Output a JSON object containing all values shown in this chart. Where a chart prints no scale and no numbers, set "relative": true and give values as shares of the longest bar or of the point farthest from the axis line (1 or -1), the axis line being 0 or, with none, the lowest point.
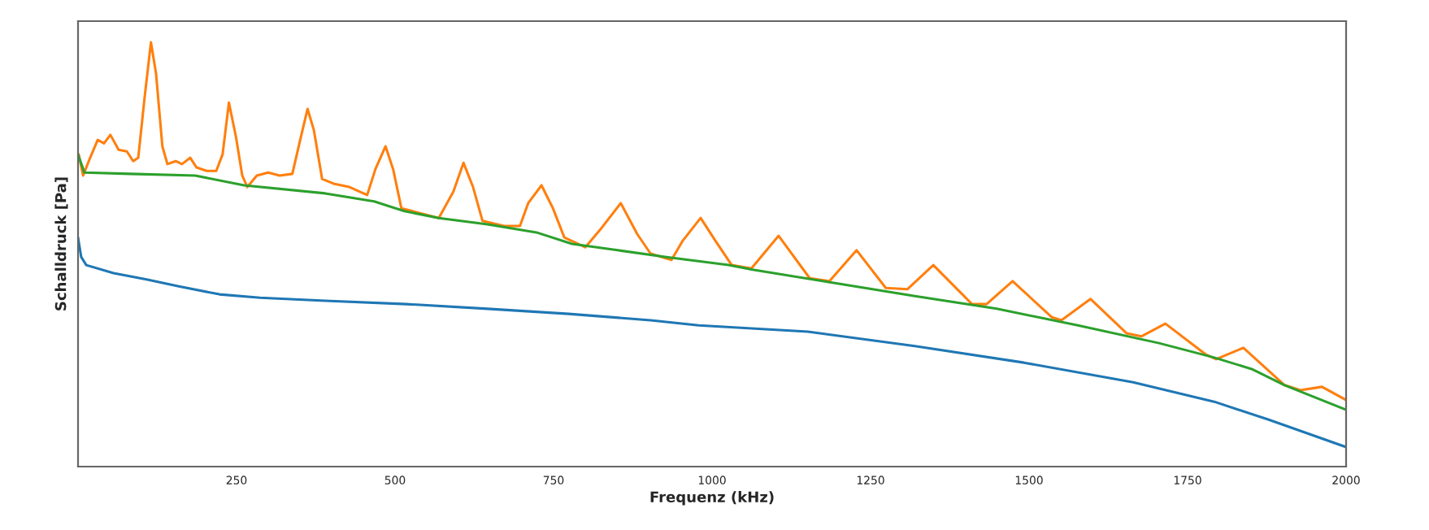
{
  "chart_data": {
    "type": "line",
    "relative": true,
    "xlabel": "Frequenz (kHz)",
    "ylabel": "Schalldruck [Pa]",
    "xlim": [
      0,
      2000
    ],
    "xticks": [
      250,
      500,
      750,
      1000,
      1250,
      1500,
      1750,
      2000
    ],
    "grid": false,
    "legend": false,
    "series": [
      {
        "color": "#1f77b4",
        "x": [
          0,
          5,
          13,
          56,
          108,
          159,
          223,
          287,
          390,
          518,
          646,
          774,
          903,
          979,
          1151,
          1320,
          1492,
          1664,
          1792,
          1877,
          2000
        ],
        "values": [
          0.54,
          0.494,
          0.475,
          0.456,
          0.441,
          0.425,
          0.406,
          0.398,
          0.391,
          0.383,
          0.372,
          0.36,
          0.345,
          0.333,
          0.318,
          0.284,
          0.245,
          0.199,
          0.153,
          0.111,
          0.046
        ]
      },
      {
        "color": "#ff7f0e",
        "x": [
          1,
          8,
          18,
          31,
          41,
          51,
          64,
          77,
          87,
          95,
          105,
          115,
          123,
          133,
          141,
          154,
          164,
          177,
          187,
          203,
          218,
          228,
          238,
          249,
          259,
          267,
          282,
          300,
          318,
          338,
          351,
          362,
          372,
          385,
          403,
          428,
          456,
          469,
          485,
          497,
          510,
          538,
          569,
          592,
          608,
          623,
          638,
          672,
          697,
          710,
          731,
          749,
          767,
          800,
          826,
          856,
          882,
          903,
          936,
          954,
          982,
          1005,
          1031,
          1062,
          1105,
          1154,
          1185,
          1228,
          1274,
          1308,
          1349,
          1410,
          1433,
          1474,
          1536,
          1551,
          1597,
          1654,
          1677,
          1715,
          1779,
          1795,
          1838,
          1903,
          1928,
          1962,
          2000
        ],
        "values": [
          0.736,
          0.686,
          0.724,
          0.77,
          0.762,
          0.782,
          0.747,
          0.743,
          0.72,
          0.728,
          0.87,
          1.0,
          0.927,
          0.755,
          0.713,
          0.72,
          0.713,
          0.728,
          0.705,
          0.697,
          0.697,
          0.736,
          0.858,
          0.778,
          0.686,
          0.659,
          0.686,
          0.693,
          0.686,
          0.69,
          0.774,
          0.843,
          0.793,
          0.678,
          0.667,
          0.659,
          0.64,
          0.701,
          0.755,
          0.701,
          0.609,
          0.598,
          0.586,
          0.648,
          0.716,
          0.659,
          0.579,
          0.567,
          0.567,
          0.621,
          0.663,
          0.609,
          0.54,
          0.517,
          0.563,
          0.621,
          0.548,
          0.502,
          0.487,
          0.533,
          0.586,
          0.533,
          0.475,
          0.467,
          0.544,
          0.444,
          0.437,
          0.51,
          0.421,
          0.418,
          0.475,
          0.383,
          0.383,
          0.437,
          0.352,
          0.345,
          0.395,
          0.314,
          0.307,
          0.337,
          0.264,
          0.253,
          0.28,
          0.192,
          0.18,
          0.188,
          0.157
        ]
      },
      {
        "color": "#2ca02c",
        "x": [
          0,
          10,
          82,
          185,
          262,
          390,
          467,
          515,
          569,
          646,
          723,
          779,
          851,
          928,
          1026,
          1064,
          1192,
          1320,
          1449,
          1577,
          1705,
          1792,
          1851,
          1903,
          2000
        ],
        "values": [
          0.736,
          0.693,
          0.69,
          0.686,
          0.663,
          0.644,
          0.625,
          0.602,
          0.586,
          0.571,
          0.552,
          0.525,
          0.51,
          0.494,
          0.475,
          0.464,
          0.433,
          0.402,
          0.372,
          0.333,
          0.291,
          0.257,
          0.23,
          0.192,
          0.134
        ]
      }
    ]
  }
}
